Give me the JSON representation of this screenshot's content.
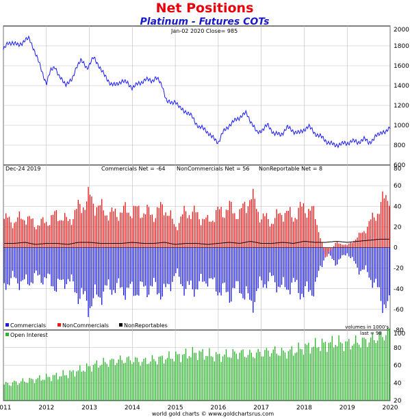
{
  "header": {
    "title": "Net Positions",
    "subtitle": "Platinum - Futures COTs",
    "title_color": "#e8000b",
    "subtitle_color": "#1a1acc"
  },
  "footer": {
    "credit": "world gold charts © www.goldchartsrus.com"
  },
  "chart_data": [
    {
      "type": "line",
      "panel": "price",
      "annotation": "Jan-02  2020   Close= 985",
      "x_unit": "year",
      "ylim": [
        600,
        2000
      ],
      "yticks": [
        600,
        800,
        1000,
        1200,
        1400,
        1600,
        1800,
        2000
      ],
      "series": [
        {
          "color": "#1a1aff",
          "x": [
            2011.0,
            2011.1,
            2011.2,
            2011.35,
            2011.5,
            2011.6,
            2011.7,
            2011.85,
            2012.0,
            2012.1,
            2012.2,
            2012.3,
            2012.45,
            2012.6,
            2012.7,
            2012.8,
            2012.95,
            2013.1,
            2013.2,
            2013.35,
            2013.5,
            2013.6,
            2013.75,
            2013.9,
            2014.0,
            2014.15,
            2014.3,
            2014.45,
            2014.55,
            2014.7,
            2014.8,
            2014.9,
            2015.0,
            2015.1,
            2015.25,
            2015.4,
            2015.55,
            2015.7,
            2015.85,
            2016.0,
            2016.1,
            2016.25,
            2016.4,
            2016.55,
            2016.65,
            2016.8,
            2016.9,
            2017.0,
            2017.15,
            2017.3,
            2017.45,
            2017.6,
            2017.75,
            2017.9,
            2018.0,
            2018.1,
            2018.25,
            2018.4,
            2018.55,
            2018.7,
            2018.85,
            2019.0,
            2019.1,
            2019.25,
            2019.4,
            2019.5,
            2019.6,
            2019.7,
            2019.8,
            2019.9,
            2020.0
          ],
          "y": [
            1760,
            1820,
            1840,
            1800,
            1860,
            1870,
            1780,
            1600,
            1420,
            1550,
            1600,
            1480,
            1420,
            1450,
            1600,
            1650,
            1580,
            1680,
            1620,
            1500,
            1420,
            1400,
            1450,
            1420,
            1380,
            1420,
            1460,
            1450,
            1480,
            1400,
            1240,
            1220,
            1250,
            1170,
            1140,
            1080,
            980,
            960,
            880,
            830,
            920,
            1000,
            1050,
            1100,
            1120,
            1010,
            920,
            950,
            1000,
            920,
            900,
            980,
            940,
            920,
            960,
            990,
            920,
            880,
            830,
            800,
            810,
            820,
            840,
            830,
            860,
            830,
            850,
            900,
            940,
            920,
            985
          ]
        }
      ]
    },
    {
      "type": "bar",
      "panel": "net positions",
      "annotations": [
        "Dec-24  2019",
        "Commercials Net = -64",
        "NonCommercials Net = 56",
        "NonReportable Net = 8",
        "volumes in 1000's"
      ],
      "x_unit": "year",
      "ylim": [
        -80,
        80
      ],
      "yticks": [
        -80,
        -60,
        -40,
        -20,
        0,
        20,
        40,
        60,
        80
      ],
      "x": [
        2011.0,
        2011.25,
        2011.5,
        2011.75,
        2012.0,
        2012.25,
        2012.5,
        2012.75,
        2013.0,
        2013.25,
        2013.5,
        2013.75,
        2014.0,
        2014.25,
        2014.5,
        2014.75,
        2015.0,
        2015.25,
        2015.5,
        2015.75,
        2016.0,
        2016.25,
        2016.5,
        2016.75,
        2017.0,
        2017.25,
        2017.5,
        2017.75,
        2018.0,
        2018.25,
        2018.5,
        2018.75,
        2019.0,
        2019.25,
        2019.5,
        2019.75,
        2020.0
      ],
      "series": [
        {
          "name": "Commercials",
          "color": "#1a1aee",
          "values": [
            -35,
            -30,
            -35,
            -28,
            -30,
            -38,
            -30,
            -45,
            -55,
            -45,
            -38,
            -40,
            -42,
            -40,
            -38,
            -45,
            -25,
            -40,
            -38,
            -30,
            -40,
            -45,
            -38,
            -55,
            -35,
            -30,
            -40,
            -35,
            -45,
            -38,
            -5,
            -15,
            -5,
            -20,
            -25,
            -45,
            -64
          ]
        },
        {
          "name": "NonCommercials",
          "color": "#ee1a1a",
          "values": [
            28,
            25,
            30,
            22,
            25,
            32,
            25,
            38,
            48,
            38,
            32,
            35,
            36,
            35,
            32,
            40,
            20,
            35,
            32,
            25,
            34,
            38,
            32,
            50,
            30,
            25,
            35,
            30,
            40,
            32,
            -10,
            5,
            2,
            10,
            22,
            38,
            56
          ]
        },
        {
          "name": "NonReportables",
          "color": "#000000",
          "values": [
            4,
            4,
            5,
            3,
            4,
            4,
            3,
            5,
            5,
            4,
            4,
            4,
            5,
            4,
            4,
            5,
            3,
            4,
            4,
            3,
            4,
            5,
            4,
            6,
            4,
            4,
            5,
            4,
            6,
            5,
            5,
            6,
            5,
            6,
            7,
            8,
            8
          ]
        }
      ]
    },
    {
      "type": "bar",
      "panel": "open interest",
      "annotations": [
        "last = 98"
      ],
      "x_unit": "year",
      "ylim": [
        20,
        100
      ],
      "yticks": [
        20,
        40,
        60,
        80,
        100
      ],
      "x": [
        2011.0,
        2011.25,
        2011.5,
        2011.75,
        2012.0,
        2012.25,
        2012.5,
        2012.75,
        2013.0,
        2013.25,
        2013.5,
        2013.75,
        2014.0,
        2014.25,
        2014.5,
        2014.75,
        2015.0,
        2015.25,
        2015.5,
        2015.75,
        2016.0,
        2016.25,
        2016.5,
        2016.75,
        2017.0,
        2017.25,
        2017.5,
        2017.75,
        2018.0,
        2018.25,
        2018.5,
        2018.75,
        2019.0,
        2019.25,
        2019.5,
        2019.75,
        2020.0
      ],
      "series": [
        {
          "name": "Open Interest",
          "color": "#2bb52b",
          "values": [
            38,
            40,
            42,
            44,
            46,
            48,
            50,
            54,
            58,
            62,
            64,
            66,
            66,
            64,
            66,
            68,
            70,
            72,
            74,
            72,
            70,
            72,
            74,
            72,
            74,
            76,
            74,
            76,
            80,
            82,
            84,
            86,
            84,
            86,
            88,
            92,
            98
          ]
        }
      ]
    }
  ],
  "x_axis": {
    "ticks": [
      "2011",
      "2012",
      "2013",
      "2014",
      "2015",
      "2016",
      "2017",
      "2018",
      "2019",
      "2020"
    ]
  },
  "legend": [
    {
      "label": "Commercials",
      "color": "#1a1aee"
    },
    {
      "label": "NonCommercials",
      "color": "#ee1a1a"
    },
    {
      "label": "NonReportables",
      "color": "#000000"
    }
  ]
}
